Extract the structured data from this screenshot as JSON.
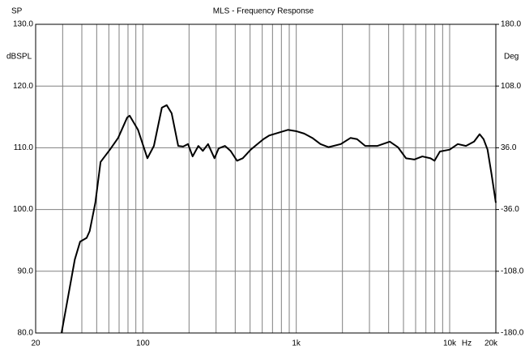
{
  "chart_data": {
    "type": "line",
    "title": "MLS - Frequency Response",
    "corner_label": "SP",
    "ylabel": "dBSPL",
    "y2label": "Deg",
    "xlabel": "Hz",
    "xscale": "log",
    "xlim": [
      20,
      20000
    ],
    "xticks": [
      20,
      100,
      {
        "value": 1000,
        "label": "1k"
      },
      {
        "value": 10000,
        "label": "10k"
      },
      {
        "value": 20000,
        "label": "20k"
      }
    ],
    "xgrid": [
      30,
      40,
      50,
      60,
      70,
      80,
      90,
      200,
      300,
      400,
      500,
      600,
      700,
      800,
      900,
      2000,
      3000,
      4000,
      5000,
      6000,
      7000,
      8000,
      9000
    ],
    "ylim": [
      80,
      130
    ],
    "yticks": [
      {
        "value": 80,
        "label": "80.0"
      },
      {
        "value": 90,
        "label": "90.0"
      },
      {
        "value": 100,
        "label": "100.0"
      },
      {
        "value": 110,
        "label": "110.0"
      },
      {
        "value": 120,
        "label": "120.0"
      },
      {
        "value": 130,
        "label": "130.0"
      }
    ],
    "y2lim": [
      -180,
      180
    ],
    "y2ticks": [
      {
        "value": -180,
        "label": "-180.0"
      },
      {
        "value": -108,
        "label": "-108.0"
      },
      {
        "value": -36,
        "label": "-36.0"
      },
      {
        "value": 36,
        "label": "36.0"
      },
      {
        "value": 108,
        "label": "108.0"
      },
      {
        "value": 180,
        "label": "180.0"
      }
    ],
    "grid": true,
    "x": [
      29.5,
      33,
      36,
      39,
      43,
      45,
      49,
      53,
      61,
      69,
      79,
      82,
      93,
      107,
      118,
      133,
      143,
      154,
      170,
      183,
      197,
      211,
      230,
      246,
      266,
      293,
      312,
      343,
      373,
      411,
      448,
      505,
      558,
      611,
      668,
      781,
      882,
      996,
      1126,
      1272,
      1438,
      1625,
      1953,
      2261,
      2491,
      2816,
      3384,
      4071,
      4598,
      5197,
      5872,
      6636,
      7500,
      7970,
      8640,
      10000,
      11300,
      12770,
      14430,
      15680,
      16640,
      17660,
      18760,
      20000
    ],
    "series": [
      {
        "color": "#000000",
        "values": [
          80,
          86.7,
          91.9,
          94.8,
          95.4,
          96.5,
          101.1,
          107.7,
          109.7,
          111.6,
          114.9,
          115.2,
          112.9,
          108.3,
          110.3,
          116.5,
          116.9,
          115.6,
          110.3,
          110.2,
          110.6,
          108.6,
          110.3,
          109.5,
          110.6,
          108.3,
          109.9,
          110.3,
          109.5,
          107.9,
          108.3,
          109.7,
          110.6,
          111.4,
          112.0,
          112.5,
          112.9,
          112.7,
          112.3,
          111.6,
          110.6,
          110.1,
          110.6,
          111.6,
          111.4,
          110.3,
          110.3,
          111.0,
          110.1,
          108.3,
          108.1,
          108.6,
          108.3,
          107.9,
          109.4,
          109.7,
          110.6,
          110.3,
          111.0,
          112.2,
          111.4,
          109.7,
          105.7,
          101.1
        ]
      }
    ]
  }
}
